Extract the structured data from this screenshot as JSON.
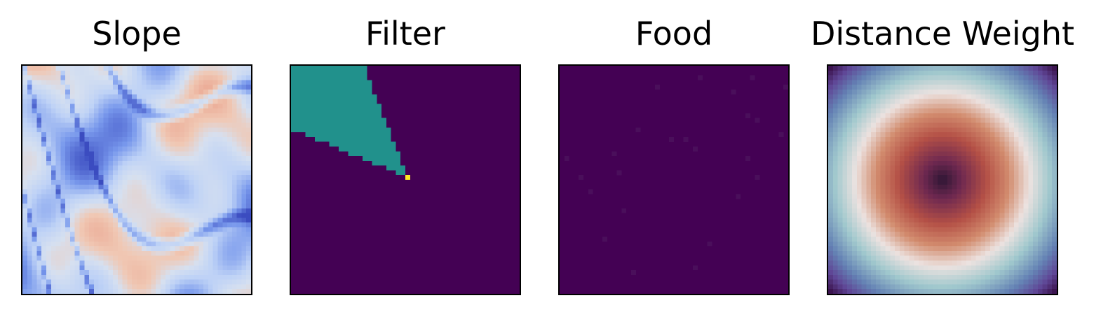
{
  "chart_data": [
    {
      "type": "heatmap",
      "title": "Slope",
      "grid_size": 48,
      "colormap": "coolwarm",
      "axes": false,
      "pattern": "terrain slope field: mostly light blue (low) with dark blue ridges/valleys and light salmon highlights, concentrated in lower-left and lower-right"
    },
    {
      "type": "heatmap",
      "title": "Filter",
      "grid_size": 48,
      "colormap": "viridis",
      "axes": false,
      "levels": {
        "background": 0,
        "cone": 0.5,
        "origin": 1
      },
      "colors": {
        "background": "#440154",
        "cone": "#21918c",
        "origin": "#fde725"
      },
      "origin_cell": [
        24,
        23
      ],
      "cone": {
        "description": "wedge from top-left region pointing down-right to the origin cell",
        "top_row_end_col": 15,
        "left_col_end_row": 13
      }
    },
    {
      "type": "heatmap",
      "title": "Food",
      "grid_size": 48,
      "colormap": "viridis",
      "axes": false,
      "background": "#440154",
      "speck_color": "#4a0f5b",
      "description": "almost uniformly zero with a few faint isolated food cells"
    },
    {
      "type": "heatmap",
      "title": "Distance Weight",
      "grid_size": 48,
      "colormap": "twilight_shifted",
      "axes": false,
      "description": "radial weight centred in grid: dark centre, orange/red ring, pale white ring, teal, fading to purple at corners"
    }
  ]
}
